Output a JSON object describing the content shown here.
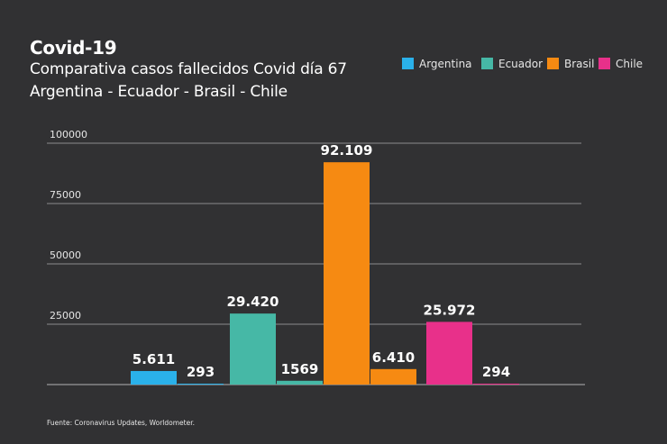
{
  "chart_data": {
    "type": "bar",
    "title": "Covid-19",
    "subtitle_line1": "Comparativa casos fallecidos Covid día 67",
    "subtitle_line2": "Argentina - Ecuador - Brasil -  Chile",
    "source": "Fuente: Coronavirus Updates, Worldometer.",
    "ylim": [
      0,
      100000
    ],
    "yticks": [
      {
        "value": 25000,
        "label": "25000"
      },
      {
        "value": 50000,
        "label": "50000"
      },
      {
        "value": 75000,
        "label": "75000"
      },
      {
        "value": 100000,
        "label": "100000"
      }
    ],
    "grid": true,
    "legend_position": "top-right",
    "legend": [
      {
        "name": "Argentina",
        "color": "#2ab1ea"
      },
      {
        "name": "Ecuador",
        "color": "#46b8a6"
      },
      {
        "name": "Brasil",
        "color": "#f68a12"
      },
      {
        "name": "Chile",
        "color": "#e8308a"
      }
    ],
    "bars": [
      {
        "value": 5611,
        "label": "5.611",
        "color": "#2ab1ea"
      },
      {
        "value": 293,
        "label": "293",
        "color": "#2ab1ea"
      },
      {
        "value": 29420,
        "label": "29.420",
        "color": "#46b8a6"
      },
      {
        "value": 1569,
        "label": "1569",
        "color": "#46b8a6"
      },
      {
        "value": 92109,
        "label": "92.109",
        "color": "#f68a12"
      },
      {
        "value": 6410,
        "label": "6.410",
        "color": "#f68a12"
      },
      {
        "value": 25972,
        "label": "25.972",
        "color": "#e8308a"
      },
      {
        "value": 294,
        "label": "294",
        "color": "#e8308a"
      }
    ]
  }
}
